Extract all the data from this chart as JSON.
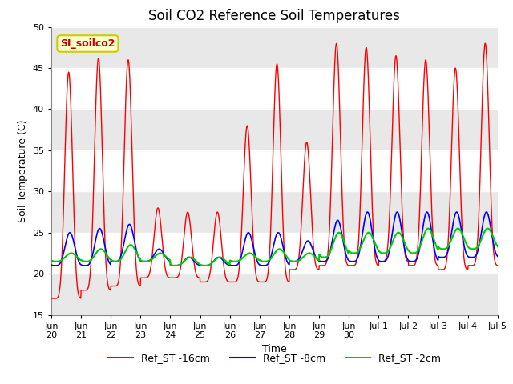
{
  "title": "Soil CO2 Reference Soil Temperatures",
  "xlabel": "Time",
  "ylabel": "Soil Temperature (C)",
  "ylim": [
    15,
    50
  ],
  "yticks": [
    15,
    20,
    25,
    30,
    35,
    40,
    45,
    50
  ],
  "annotation_text": "SI_soilco2",
  "annotation_bg": "#ffffcc",
  "annotation_border": "#cccc00",
  "line_colors": {
    "red": "#ff0000",
    "blue": "#0000ff",
    "green": "#00cc00"
  },
  "legend_labels": [
    "Ref_ST -16cm",
    "Ref_ST -8cm",
    "Ref_ST -2cm"
  ],
  "bg_color": "#ffffff",
  "band_color": "#e8e8e8",
  "grid_color": "#ffffff",
  "title_fontsize": 12,
  "axis_fontsize": 9,
  "tick_fontsize": 8,
  "peak_red": [
    44.5,
    46.2,
    46.0,
    28.0,
    27.5,
    27.5,
    38.0,
    45.5,
    36.0,
    48.0,
    47.5,
    46.5,
    46.0,
    45.0,
    48.0
  ],
  "min_red": [
    17.0,
    18.0,
    18.5,
    19.5,
    19.5,
    19.0,
    19.0,
    19.0,
    20.5,
    21.0,
    21.0,
    21.5,
    21.0,
    20.5,
    21.0
  ],
  "peak_blue": [
    25.0,
    25.5,
    26.0,
    23.0,
    22.0,
    22.0,
    25.0,
    25.0,
    24.0,
    26.5,
    27.5,
    27.5,
    27.5,
    27.5,
    27.5
  ],
  "min_blue": [
    21.0,
    21.0,
    21.5,
    21.5,
    21.0,
    21.0,
    21.0,
    21.0,
    21.5,
    21.5,
    21.5,
    21.5,
    21.5,
    22.0,
    22.0
  ],
  "peak_green": [
    22.5,
    23.0,
    23.5,
    22.5,
    22.0,
    22.0,
    22.5,
    23.0,
    22.5,
    25.0,
    25.0,
    25.0,
    25.5,
    25.5,
    25.5
  ],
  "min_green": [
    21.5,
    21.5,
    21.5,
    21.5,
    21.0,
    21.0,
    21.5,
    21.5,
    21.5,
    22.0,
    22.5,
    22.5,
    22.5,
    23.0,
    23.0
  ],
  "tick_labels": [
    "Jun\n20",
    "Jun\n21",
    "Jun\n22",
    "Jun\n23",
    "Jun\n24",
    "Jun\n25",
    "Jun\n26",
    "Jun\n27",
    "Jun\n28",
    "Jun\n29",
    "Jun\n30",
    "Jul 1",
    "Jul 2",
    "Jul 3",
    "Jul 4",
    "Jul 5"
  ]
}
